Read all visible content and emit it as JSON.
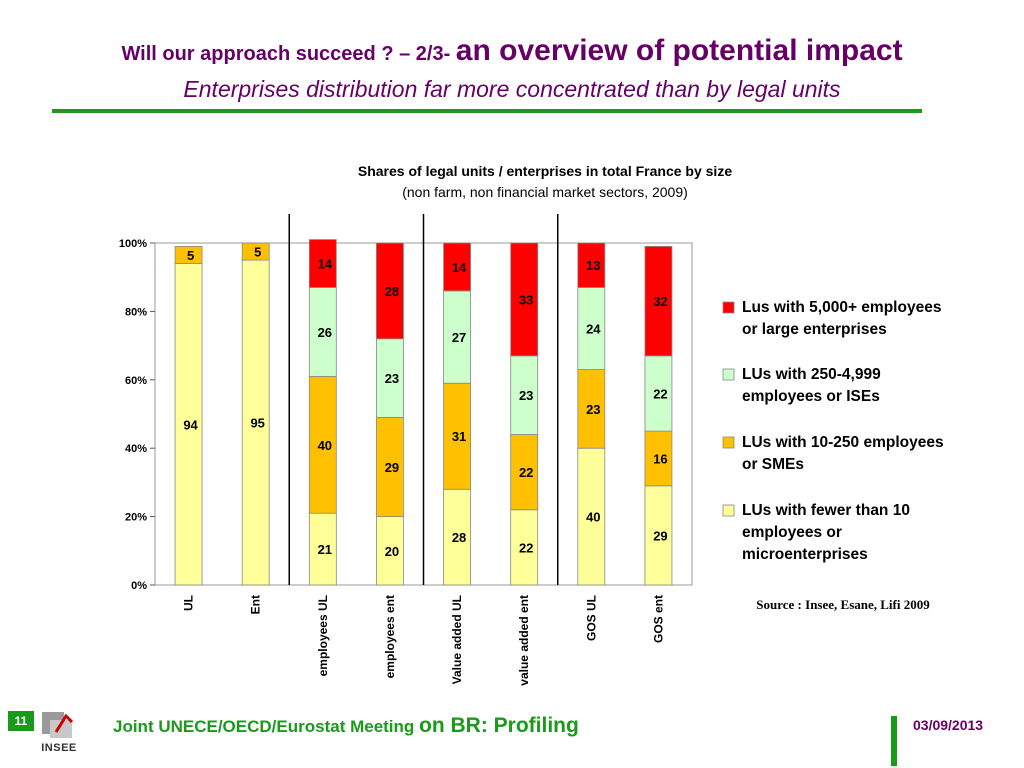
{
  "slide": {
    "title_part1": "Will our approach succeed ? – 2/3- ",
    "title_part2": "an overview of potential impact",
    "subtitle": "Enterprises distribution far more concentrated than by legal units"
  },
  "footer": {
    "page_number": "11",
    "logo_text": "INSEE",
    "meeting_part1": "Joint UNECE/OECD/Eurostat Meeting ",
    "meeting_part2": "on BR: Profiling",
    "date": "03/09/2013"
  },
  "chart_data": {
    "type": "bar",
    "stacked": true,
    "title": "Shares of legal units / enterprises in total France by size",
    "subtitle": "(non farm, non financial market sectors, 2009)",
    "source": "Source : Insee, Esane, Lifi 2009",
    "categories": [
      "UL",
      "Ent",
      "employees UL",
      "employees ent",
      "Value added UL",
      "value added ent",
      "GOS UL",
      "GOS ent"
    ],
    "y_ticks": [
      "0%",
      "20%",
      "40%",
      "60%",
      "80%",
      "100%"
    ],
    "ylim": [
      0,
      100
    ],
    "grid": false,
    "legend_position": "right",
    "series": [
      {
        "name": "LUs with fewer than 10 employees or microenterprises",
        "color": "#ffff99",
        "values": [
          94,
          95,
          21,
          20,
          28,
          22,
          40,
          29
        ],
        "labels": [
          "94",
          "95",
          "21",
          "20",
          "28",
          "22",
          "40",
          "29"
        ]
      },
      {
        "name": "LUs with 10-250 employees or SMEs",
        "color": "#ffc000",
        "values": [
          5,
          5,
          40,
          29,
          31,
          22,
          23,
          16
        ],
        "labels": [
          "5",
          "5",
          "40",
          "29",
          "31",
          "22",
          "23",
          "16"
        ]
      },
      {
        "name": "LUs with 250-4,999 employees or ISEs",
        "color": "#ccffcc",
        "values": [
          0,
          0,
          26,
          23,
          27,
          23,
          24,
          22
        ],
        "labels": [
          "",
          "",
          "26",
          "23",
          "27",
          "23",
          "24",
          "22"
        ]
      },
      {
        "name": "Lus with 5,000+ employees or large enterprises",
        "color": "#ff0000",
        "values": [
          0,
          0,
          14,
          28,
          14,
          33,
          13,
          32
        ],
        "labels": [
          "",
          "",
          "14",
          "28",
          "14",
          "33",
          "13",
          "32"
        ]
      }
    ],
    "legend_order": [
      3,
      2,
      1,
      0
    ],
    "group_separators_after": [
      1,
      3,
      5
    ]
  }
}
